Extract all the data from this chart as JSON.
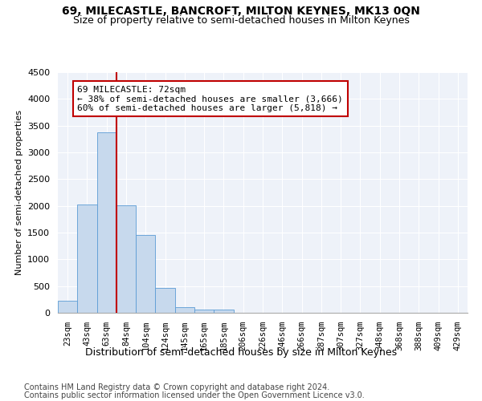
{
  "title": "69, MILECASTLE, BANCROFT, MILTON KEYNES, MK13 0QN",
  "subtitle": "Size of property relative to semi-detached houses in Milton Keynes",
  "xlabel": "Distribution of semi-detached houses by size in Milton Keynes",
  "ylabel": "Number of semi-detached properties",
  "categories": [
    "23sqm",
    "43sqm",
    "63sqm",
    "84sqm",
    "104sqm",
    "124sqm",
    "145sqm",
    "165sqm",
    "185sqm",
    "206sqm",
    "226sqm",
    "246sqm",
    "266sqm",
    "287sqm",
    "307sqm",
    "327sqm",
    "348sqm",
    "368sqm",
    "388sqm",
    "409sqm",
    "429sqm"
  ],
  "values": [
    230,
    2020,
    3370,
    2010,
    1450,
    470,
    100,
    60,
    60,
    0,
    0,
    0,
    0,
    0,
    0,
    0,
    0,
    0,
    0,
    0,
    0
  ],
  "bar_color": "#c7d9ed",
  "bar_edge_color": "#5b9bd5",
  "annotation_text": "69 MILECASTLE: 72sqm\n← 38% of semi-detached houses are smaller (3,666)\n60% of semi-detached houses are larger (5,818) →",
  "vline_color": "#c00000",
  "box_color": "#c00000",
  "ylim": [
    0,
    4500
  ],
  "yticks": [
    0,
    500,
    1000,
    1500,
    2000,
    2500,
    3000,
    3500,
    4000,
    4500
  ],
  "bg_color": "#eef2f9",
  "footer1": "Contains HM Land Registry data © Crown copyright and database right 2024.",
  "footer2": "Contains public sector information licensed under the Open Government Licence v3.0.",
  "title_fontsize": 10,
  "subtitle_fontsize": 9,
  "ylabel_fontsize": 8,
  "xlabel_fontsize": 9,
  "annotation_fontsize": 8,
  "footer_fontsize": 7,
  "tick_fontsize": 7.5,
  "ytick_fontsize": 8
}
